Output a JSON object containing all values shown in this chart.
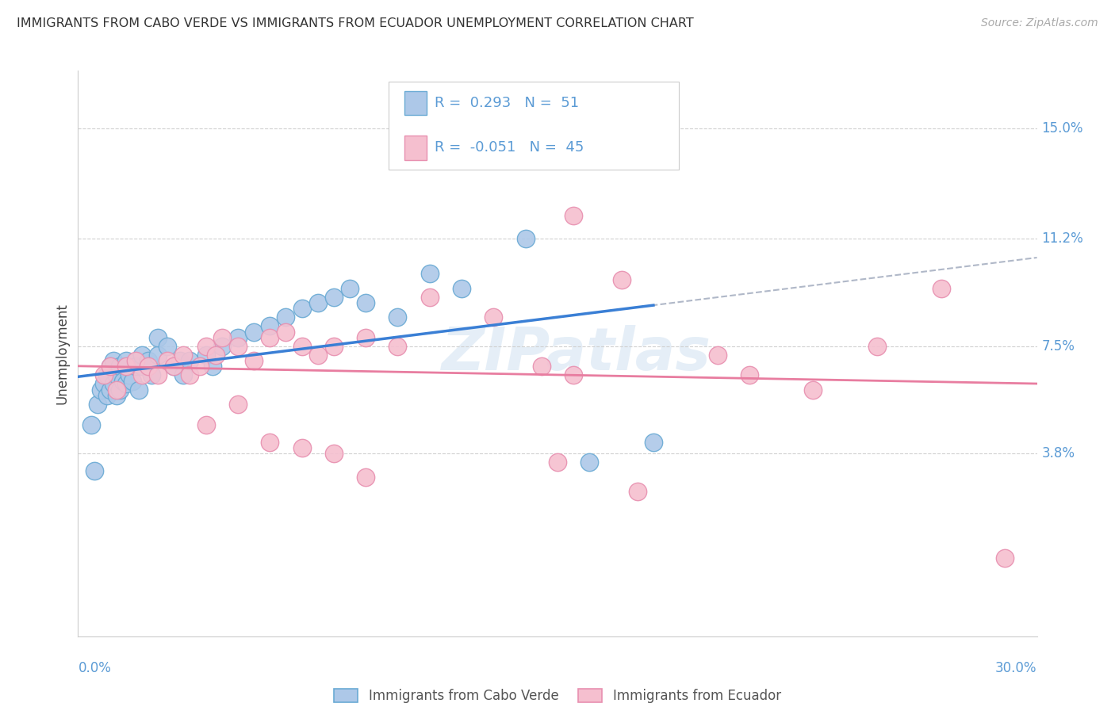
{
  "title": "IMMIGRANTS FROM CABO VERDE VS IMMIGRANTS FROM ECUADOR UNEMPLOYMENT CORRELATION CHART",
  "source": "Source: ZipAtlas.com",
  "ylabel": "Unemployment",
  "ytick_labels": [
    "15.0%",
    "11.2%",
    "7.5%",
    "3.8%"
  ],
  "ytick_values": [
    0.15,
    0.112,
    0.075,
    0.038
  ],
  "xlim": [
    0.0,
    0.3
  ],
  "ylim": [
    -0.025,
    0.17
  ],
  "cabo_verde_face_color": "#adc8e8",
  "cabo_verde_edge_color": "#6aaad4",
  "ecuador_face_color": "#f5bfcf",
  "ecuador_edge_color": "#e890b0",
  "cabo_verde_line_color": "#3a7fd5",
  "ecuador_line_color": "#e87da0",
  "dashed_line_color": "#b0b8c8",
  "cabo_verde_r": "0.293",
  "cabo_verde_n": "51",
  "ecuador_r": "-0.051",
  "ecuador_n": "45",
  "legend_label_cv": "Immigrants from Cabo Verde",
  "legend_label_ec": "Immigrants from Ecuador",
  "watermark": "ZIPatlas",
  "label_color": "#5b9bd5",
  "title_color": "#333333",
  "source_color": "#aaaaaa",
  "cabo_verde_x": [
    0.004,
    0.005,
    0.006,
    0.007,
    0.008,
    0.009,
    0.009,
    0.01,
    0.01,
    0.011,
    0.011,
    0.012,
    0.012,
    0.013,
    0.013,
    0.014,
    0.015,
    0.015,
    0.016,
    0.017,
    0.018,
    0.019,
    0.02,
    0.02,
    0.022,
    0.023,
    0.025,
    0.025,
    0.028,
    0.03,
    0.032,
    0.033,
    0.035,
    0.04,
    0.042,
    0.045,
    0.05,
    0.055,
    0.06,
    0.065,
    0.07,
    0.075,
    0.08,
    0.085,
    0.09,
    0.1,
    0.11,
    0.12,
    0.14,
    0.16,
    0.18
  ],
  "cabo_verde_y": [
    0.048,
    0.032,
    0.055,
    0.06,
    0.062,
    0.058,
    0.065,
    0.06,
    0.068,
    0.062,
    0.07,
    0.058,
    0.065,
    0.06,
    0.068,
    0.063,
    0.062,
    0.07,
    0.065,
    0.063,
    0.068,
    0.06,
    0.068,
    0.072,
    0.07,
    0.065,
    0.072,
    0.078,
    0.075,
    0.068,
    0.07,
    0.065,
    0.07,
    0.072,
    0.068,
    0.075,
    0.078,
    0.08,
    0.082,
    0.085,
    0.088,
    0.09,
    0.092,
    0.095,
    0.09,
    0.085,
    0.1,
    0.095,
    0.112,
    0.035,
    0.042
  ],
  "ecuador_x": [
    0.008,
    0.01,
    0.012,
    0.015,
    0.018,
    0.02,
    0.022,
    0.025,
    0.028,
    0.03,
    0.033,
    0.035,
    0.038,
    0.04,
    0.043,
    0.045,
    0.05,
    0.055,
    0.06,
    0.065,
    0.07,
    0.075,
    0.08,
    0.09,
    0.1,
    0.11,
    0.13,
    0.145,
    0.155,
    0.17,
    0.2,
    0.21,
    0.23,
    0.25,
    0.27,
    0.04,
    0.05,
    0.06,
    0.07,
    0.08,
    0.09,
    0.15,
    0.29,
    0.155,
    0.175
  ],
  "ecuador_y": [
    0.065,
    0.068,
    0.06,
    0.068,
    0.07,
    0.065,
    0.068,
    0.065,
    0.07,
    0.068,
    0.072,
    0.065,
    0.068,
    0.075,
    0.072,
    0.078,
    0.075,
    0.07,
    0.078,
    0.08,
    0.075,
    0.072,
    0.075,
    0.078,
    0.075,
    0.092,
    0.085,
    0.068,
    0.12,
    0.098,
    0.072,
    0.065,
    0.06,
    0.075,
    0.095,
    0.048,
    0.055,
    0.042,
    0.04,
    0.038,
    0.03,
    0.035,
    0.002,
    0.065,
    0.025
  ]
}
